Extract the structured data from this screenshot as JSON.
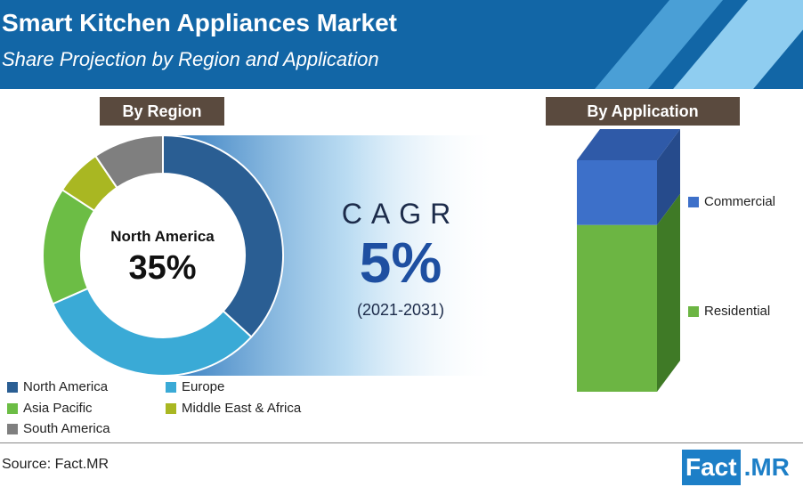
{
  "header": {
    "title": "Smart Kitchen Appliances Market",
    "subtitle": "Share Projection by Region and Application"
  },
  "tabs": {
    "region": "By Region",
    "application": "By Application"
  },
  "donut": {
    "center_label": "North America",
    "center_value": "35%"
  },
  "cagr": {
    "label": "CAGR",
    "value": "5%",
    "period": "(2021-2031)"
  },
  "source": "Source: Fact.MR",
  "logo": {
    "part1": "Fact",
    "part2": ".MR"
  },
  "colors": {
    "north_america": "#2a5e93",
    "europe": "#3aaad6",
    "asia_pacific": "#6cbd45",
    "middle_east_africa": "#a9b722",
    "south_america": "#7f7f7f",
    "commercial": "#3d70c9",
    "residential": "#6cb543"
  },
  "chart_data": [
    {
      "type": "pie",
      "variant": "donut",
      "categories": [
        "North America",
        "Europe",
        "Asia Pacific",
        "Middle East & Africa",
        "South America"
      ],
      "values": [
        35,
        30,
        15,
        6,
        9
      ],
      "legend_position": "bottom"
    },
    {
      "type": "bar",
      "variant": "stacked-100",
      "categories": [
        ""
      ],
      "series": [
        {
          "name": "Commercial",
          "values": [
            28
          ]
        },
        {
          "name": "Residential",
          "values": [
            72
          ]
        }
      ],
      "legend_position": "right"
    }
  ]
}
